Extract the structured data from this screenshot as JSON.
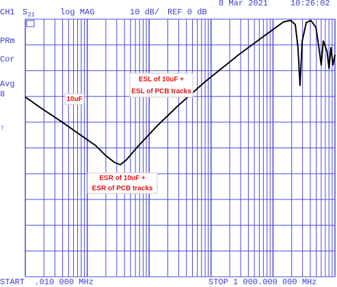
{
  "chart_data": {
    "type": "line",
    "header": {
      "channel": "CH1",
      "param": "S",
      "param_sub": "21",
      "format": "log MAG",
      "scale": "10 dB/",
      "ref": "REF 0 dB",
      "date": "8 Mar 2021",
      "time": "10:26:02"
    },
    "side_labels": [
      "PRm",
      "Cor",
      "Avg",
      "8",
      "↑"
    ],
    "footer": {
      "start": "START  .010 000 MHz",
      "stop": "STOP 1 000.000 000 MHz"
    },
    "annotations": [
      {
        "lines": [
          "10uF"
        ]
      },
      {
        "lines": [
          "ESL of 10uF +",
          "ESL of PCB tracks"
        ]
      },
      {
        "lines": [
          "ESR of 10uF +",
          "ESR of PCB tracks"
        ]
      }
    ],
    "xscale": "log",
    "xlim": [
      10000,
      1000000000
    ],
    "ylim": [
      -100,
      0
    ],
    "grid": true,
    "grid_color": "#4646e0",
    "x": [
      10000,
      17900,
      38400,
      82400,
      137000,
      200000,
      279000,
      342000,
      430000,
      631000,
      1350000,
      2900000,
      7900000,
      28000000,
      79000000,
      148000000,
      191000000,
      229000000,
      253000000,
      273000000,
      296000000,
      345000000,
      409000000,
      493000000,
      540000000,
      600000000,
      650000000,
      744000000,
      802000000,
      860000000,
      930000000,
      1000000000
    ],
    "series": [
      {
        "color": "#000000",
        "values": [
          -30.2,
          -34.5,
          -39.8,
          -45.4,
          -49.1,
          -53,
          -55.7,
          -56.5,
          -54.6,
          -49.9,
          -41.4,
          -33.7,
          -24.4,
          -13.8,
          -5.8,
          -1.1,
          -0.5,
          -2.1,
          -11.1,
          -25.7,
          -8.5,
          -1.3,
          -0.5,
          -3.2,
          -9.8,
          -17.8,
          -8.5,
          -12.5,
          -19.1,
          -11.1,
          -17.8,
          -13.8
        ]
      }
    ]
  }
}
